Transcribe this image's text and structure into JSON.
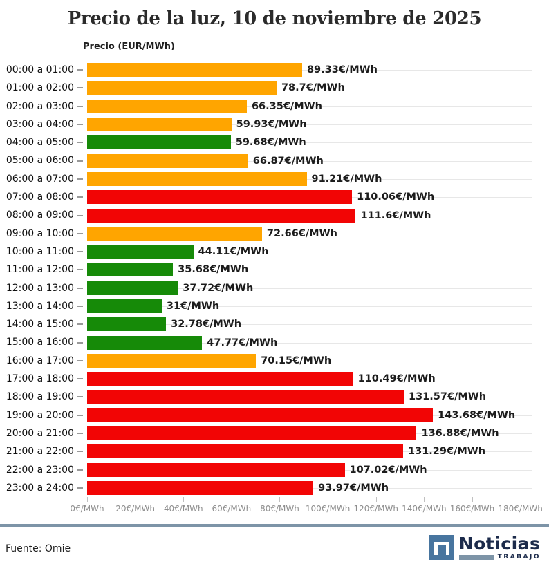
{
  "header": {
    "title": "Precio de la luz, 10 de noviembre de 2025",
    "axis_title": "Precio (EUR/MWh)"
  },
  "colors": {
    "orange": "#FFA500",
    "green": "#168A08",
    "red": "#F20505",
    "grid": "#E7E7E7",
    "axis_tick": "#C0C0C0",
    "axis_text": "#8E8E8E",
    "divider": "#7D94A7",
    "logo_blue": "#48759F",
    "logo_navy": "#1C2B4B"
  },
  "chart_data": {
    "type": "bar",
    "orientation": "horizontal",
    "title": "Precio de la luz, 10 de noviembre de 2025",
    "axis_title": "Precio (EUR/MWh)",
    "value_suffix": "€/MWh",
    "categories": [
      "00:00 a 01:00",
      "01:00 a 02:00",
      "02:00 a 03:00",
      "03:00 a 04:00",
      "04:00 a 05:00",
      "05:00 a 06:00",
      "06:00 a 07:00",
      "07:00 a 08:00",
      "08:00 a 09:00",
      "09:00 a 10:00",
      "10:00 a 11:00",
      "11:00 a 12:00",
      "12:00 a 13:00",
      "13:00 a 14:00",
      "14:00 a 15:00",
      "15:00 a 16:00",
      "16:00 a 17:00",
      "17:00 a 18:00",
      "18:00 a 19:00",
      "19:00 a 20:00",
      "20:00 a 21:00",
      "21:00 a 22:00",
      "22:00 a 23:00",
      "23:00 a 24:00"
    ],
    "values": [
      89.33,
      78.7,
      66.35,
      59.93,
      59.68,
      66.87,
      91.21,
      110.06,
      111.6,
      72.66,
      44.11,
      35.68,
      37.72,
      31,
      32.78,
      47.77,
      70.15,
      110.49,
      131.57,
      143.68,
      136.88,
      131.29,
      107.02,
      93.97
    ],
    "bar_colors": [
      "orange",
      "orange",
      "orange",
      "orange",
      "green",
      "orange",
      "orange",
      "red",
      "red",
      "orange",
      "green",
      "green",
      "green",
      "green",
      "green",
      "green",
      "orange",
      "red",
      "red",
      "red",
      "red",
      "red",
      "red",
      "red"
    ],
    "x_tick_values": [
      0,
      20,
      40,
      60,
      80,
      100,
      120,
      140,
      160,
      180
    ],
    "x_tick_labels": [
      "0€/MWh",
      "20€/MWh",
      "40€/MWh",
      "60€/MWh",
      "80€/MWh",
      "100€/MWh",
      "120€/MWh",
      "140€/MWh",
      "160€/MWh",
      "180€/MWh"
    ],
    "xlim": [
      0,
      185
    ],
    "grid": "horizontal-per-category",
    "legend": "none"
  },
  "footer": {
    "source": "Fuente: Omie",
    "logo_name": "Noticias",
    "logo_sub": "TRABAJO"
  }
}
